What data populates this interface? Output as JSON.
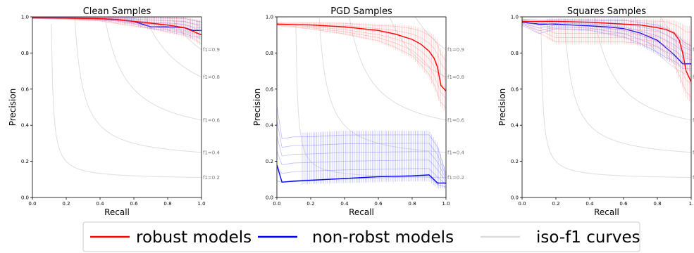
{
  "chart_data": [
    {
      "type": "line",
      "title": "Clean Samples",
      "xlabel": "Recall",
      "ylabel": "Precision",
      "xlim": [
        0,
        1
      ],
      "ylim": [
        0,
        1
      ],
      "xticks": [
        "0.0",
        "0.2",
        "0.4",
        "0.6",
        "0.8",
        "1.0"
      ],
      "yticks": [
        "0.0",
        "0.2",
        "0.4",
        "0.6",
        "0.8",
        "1.0"
      ],
      "series": [
        {
          "name": "robust models",
          "x": [
            0.0,
            0.2,
            0.4,
            0.5,
            0.6,
            0.7,
            0.8,
            0.9,
            0.95,
            1.0
          ],
          "y": [
            0.995,
            0.993,
            0.99,
            0.985,
            0.975,
            0.965,
            0.955,
            0.94,
            0.92,
            0.9
          ],
          "band_low": [
            0.99,
            0.985,
            0.975,
            0.96,
            0.945,
            0.93,
            0.91,
            0.89,
            0.87,
            0.84
          ],
          "band_high": [
            1.0,
            1.0,
            1.0,
            1.0,
            1.0,
            1.0,
            1.0,
            1.0,
            0.99,
            0.98
          ]
        },
        {
          "name": "non-robst models",
          "x": [
            0.0,
            0.2,
            0.4,
            0.5,
            0.6,
            0.65,
            0.7,
            0.8,
            0.9,
            0.95,
            1.0
          ],
          "y": [
            0.995,
            0.995,
            0.99,
            0.985,
            0.975,
            0.96,
            0.945,
            0.945,
            0.94,
            0.925,
            0.925
          ],
          "band_low": [
            0.99,
            0.99,
            0.98,
            0.975,
            0.96,
            0.94,
            0.93,
            0.92,
            0.9,
            0.88,
            0.88
          ],
          "band_high": [
            1.0,
            1.0,
            1.0,
            1.0,
            1.0,
            1.0,
            1.0,
            1.0,
            1.0,
            0.99,
            0.98
          ]
        }
      ],
      "iso_f1": [
        0.2,
        0.4,
        0.6,
        0.8,
        0.9
      ]
    },
    {
      "type": "line",
      "title": "PGD Samples",
      "xlabel": "Recall",
      "ylabel": "Precision",
      "xlim": [
        0,
        1
      ],
      "ylim": [
        0,
        1
      ],
      "xticks": [
        "0.0",
        "0.2",
        "0.4",
        "0.6",
        "0.8",
        "1.0"
      ],
      "yticks": [
        "0.0",
        "0.2",
        "0.4",
        "0.6",
        "0.8",
        "1.0"
      ],
      "series": [
        {
          "name": "robust models",
          "x": [
            0.0,
            0.2,
            0.4,
            0.6,
            0.7,
            0.8,
            0.85,
            0.9,
            0.93,
            0.95,
            0.97,
            1.0
          ],
          "y": [
            0.96,
            0.955,
            0.945,
            0.925,
            0.905,
            0.875,
            0.85,
            0.81,
            0.77,
            0.72,
            0.62,
            0.59
          ],
          "band_low": [
            0.95,
            0.93,
            0.9,
            0.86,
            0.82,
            0.77,
            0.72,
            0.66,
            0.6,
            0.55,
            0.5,
            0.47
          ],
          "band_high": [
            0.97,
            0.97,
            0.97,
            0.96,
            0.96,
            0.95,
            0.94,
            0.92,
            0.9,
            0.87,
            0.82,
            0.78
          ]
        },
        {
          "name": "non-robst models",
          "x": [
            0.0,
            0.03,
            0.1,
            0.2,
            0.4,
            0.6,
            0.8,
            0.9,
            0.95,
            1.0
          ],
          "y": [
            0.18,
            0.085,
            0.09,
            0.095,
            0.105,
            0.115,
            0.12,
            0.125,
            0.08,
            0.08
          ],
          "band_low": [
            0.05,
            0.06,
            0.07,
            0.075,
            0.08,
            0.085,
            0.09,
            0.09,
            0.05,
            0.05
          ],
          "band_high": [
            0.55,
            0.35,
            0.36,
            0.36,
            0.37,
            0.37,
            0.37,
            0.37,
            0.3,
            0.14
          ]
        }
      ],
      "iso_f1": [
        0.2,
        0.4,
        0.6,
        0.8,
        0.9
      ]
    },
    {
      "type": "line",
      "title": "Squares Samples",
      "xlabel": "Recall",
      "ylabel": "Precision",
      "xlim": [
        0,
        1
      ],
      "ylim": [
        0,
        1
      ],
      "xticks": [
        "0.0",
        "0.2",
        "0.4",
        "0.6",
        "0.8",
        "1."
      ],
      "yticks": [
        "0.0",
        "0.2",
        "0.4",
        "0.6",
        "0.8",
        "1.0"
      ],
      "series": [
        {
          "name": "robust models",
          "x": [
            0.0,
            0.2,
            0.4,
            0.6,
            0.7,
            0.8,
            0.85,
            0.9,
            0.93,
            0.95,
            0.97,
            1.0
          ],
          "y": [
            0.975,
            0.975,
            0.97,
            0.96,
            0.955,
            0.94,
            0.93,
            0.91,
            0.87,
            0.8,
            0.7,
            0.64
          ],
          "band_low": [
            0.96,
            0.85,
            0.85,
            0.85,
            0.84,
            0.82,
            0.78,
            0.72,
            0.65,
            0.6,
            0.55,
            0.52
          ],
          "band_high": [
            0.99,
            0.99,
            0.99,
            0.99,
            0.99,
            0.99,
            0.99,
            0.98,
            0.97,
            0.96,
            0.95,
            0.95
          ]
        },
        {
          "name": "non-robst models",
          "x": [
            0.0,
            0.1,
            0.2,
            0.4,
            0.5,
            0.6,
            0.7,
            0.8,
            0.85,
            0.9,
            0.93,
            0.95,
            1.0
          ],
          "y": [
            0.97,
            0.96,
            0.96,
            0.95,
            0.945,
            0.935,
            0.91,
            0.87,
            0.83,
            0.79,
            0.76,
            0.74,
            0.74
          ],
          "band_low": [
            0.95,
            0.9,
            0.93,
            0.92,
            0.9,
            0.88,
            0.84,
            0.79,
            0.76,
            0.74,
            0.72,
            0.7,
            0.7
          ],
          "band_high": [
            0.99,
            0.99,
            0.99,
            0.99,
            0.99,
            0.99,
            0.98,
            0.97,
            0.95,
            0.92,
            0.9,
            0.88,
            0.85
          ]
        }
      ],
      "iso_f1": [
        0.2,
        0.4,
        0.6,
        0.8,
        0.9
      ]
    }
  ],
  "legend": {
    "placement": "bottom-center",
    "items": [
      {
        "label": "robust models",
        "color": "#ff0000"
      },
      {
        "label": "non-robst models",
        "color": "#0000ff"
      },
      {
        "label": "iso-f1 curves",
        "color": "#dddddd"
      }
    ]
  },
  "colors": {
    "robust": "#ff0000",
    "robust_band": "#ff8a8a",
    "nonrobust": "#0000ff",
    "nonrobust_band": "#6f6fff",
    "iso": "#dedede"
  }
}
